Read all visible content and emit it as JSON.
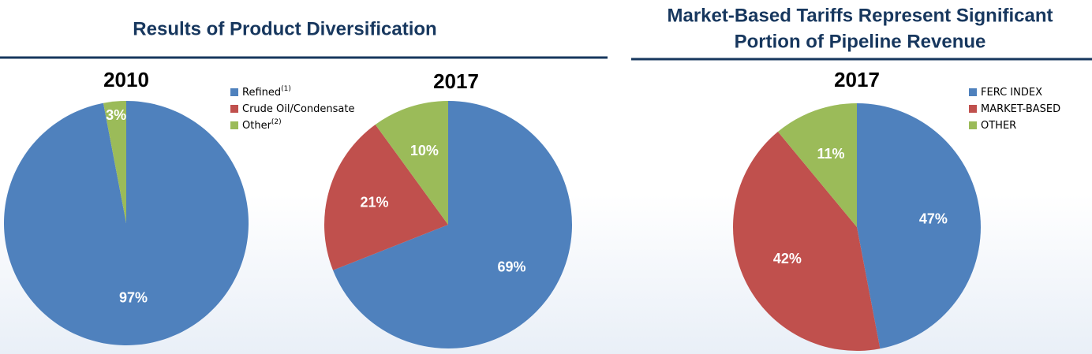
{
  "headings": [
    [
      "Results of Product Diversification"
    ],
    [
      "Market-Based Tariffs Represent Significant",
      "Portion of Pipeline Revenue"
    ]
  ],
  "chart_data": [
    {
      "type": "pie",
      "title": "2010",
      "categories": [
        "Refined",
        "Crude Oil/Condensate",
        "Other"
      ],
      "category_notes": [
        "(1)",
        null,
        "(2)"
      ],
      "colors": [
        "#4f81bd",
        "#c0504d",
        "#9bbb59"
      ],
      "values": [
        97,
        null,
        3
      ],
      "value_labels": [
        "97%",
        null,
        "3%"
      ]
    },
    {
      "type": "pie",
      "title": "2017",
      "values": [
        69,
        21,
        10
      ],
      "value_labels": [
        "69%",
        "21%",
        "10%"
      ]
    },
    {
      "type": "pie",
      "title": "2017",
      "categories": [
        "FERC INDEX",
        "MARKET-BASED",
        "OTHER"
      ],
      "colors": [
        "#4f81bd",
        "#c0504d",
        "#9bbb59"
      ],
      "values": [
        47,
        42,
        11
      ],
      "value_labels": [
        "47%",
        "42%",
        "11%"
      ]
    }
  ]
}
